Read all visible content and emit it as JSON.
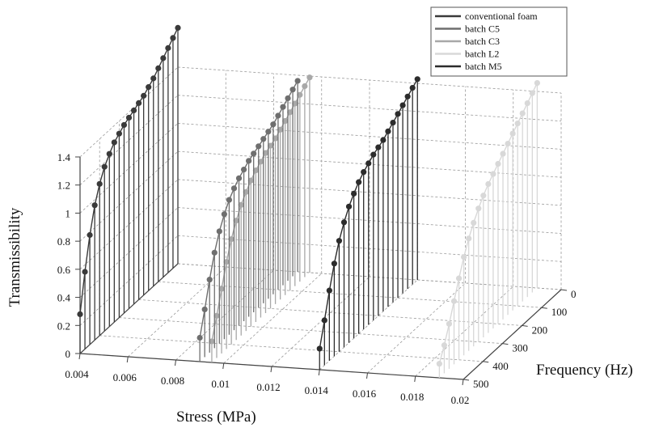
{
  "chart_data": {
    "type": "stem3d",
    "xlabel": "Stress (MPa)",
    "ylabel": "Frequency (Hz)",
    "zlabel": "Transmissibility",
    "xlim": [
      0.004,
      0.02
    ],
    "ylim": [
      0,
      500
    ],
    "zlim": [
      0,
      1.4
    ],
    "x_ticks": [
      "0.004",
      "0.006",
      "0.008",
      "0.01",
      "0.012",
      "0.014",
      "0.016",
      "0.018",
      "0.02"
    ],
    "y_ticks": [
      "0",
      "100",
      "200",
      "300",
      "400",
      "500"
    ],
    "z_ticks": [
      "0",
      "0.2",
      "0.4",
      "0.6",
      "0.8",
      "1",
      "1.2",
      "1.4"
    ],
    "legend_position": "top-right",
    "frequencies": [
      500,
      475,
      450,
      425,
      400,
      375,
      350,
      325,
      300,
      275,
      250,
      225,
      200,
      175,
      150,
      125,
      100,
      75,
      50,
      25,
      0
    ],
    "series": [
      {
        "name": "conventional foam",
        "color": "#3a3a3a",
        "stress": 0.004,
        "values": [
          0.28,
          0.55,
          0.78,
          0.96,
          1.08,
          1.17,
          1.23,
          1.28,
          1.31,
          1.34,
          1.36,
          1.38,
          1.4,
          1.42,
          1.45,
          1.48,
          1.52,
          1.56,
          1.6,
          1.64,
          1.68
        ]
      },
      {
        "name": "batch C5",
        "color": "#6f6f6f",
        "stress": 0.009,
        "values": [
          0.17,
          0.34,
          0.52,
          0.68,
          0.8,
          0.89,
          0.96,
          1.01,
          1.05,
          1.08,
          1.11,
          1.13,
          1.15,
          1.17,
          1.19,
          1.21,
          1.24,
          1.27,
          1.3,
          1.33,
          1.36
        ]
      },
      {
        "name": "batch C3",
        "color": "#a8a8a8",
        "stress": 0.0095,
        "values": [
          0.15,
          0.3,
          0.46,
          0.62,
          0.75,
          0.85,
          0.93,
          0.99,
          1.04,
          1.08,
          1.11,
          1.14,
          1.16,
          1.18,
          1.21,
          1.24,
          1.27,
          1.3,
          1.33,
          1.36,
          1.39
        ]
      },
      {
        "name": "batch L2",
        "color": "#d8d8d8",
        "stress": 0.019,
        "values": [
          0.1,
          0.2,
          0.32,
          0.45,
          0.58,
          0.7,
          0.8,
          0.88,
          0.95,
          1.01,
          1.06,
          1.1,
          1.14,
          1.18,
          1.22,
          1.26,
          1.3,
          1.34,
          1.38,
          1.42,
          1.46
        ]
      },
      {
        "name": "batch M5",
        "color": "#2c2c2c",
        "stress": 0.014,
        "values": [
          0.15,
          0.32,
          0.5,
          0.66,
          0.79,
          0.89,
          0.97,
          1.03,
          1.08,
          1.12,
          1.15,
          1.18,
          1.2,
          1.22,
          1.25,
          1.28,
          1.31,
          1.34,
          1.37,
          1.4,
          1.43
        ]
      }
    ]
  }
}
